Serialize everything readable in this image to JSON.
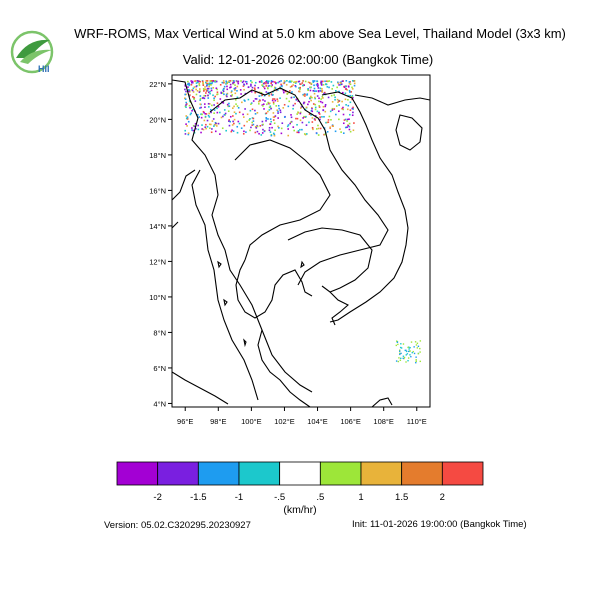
{
  "title_line1": "WRF-ROMS, Max Vertical Wind at 5.0 km above Sea Level, Thailand Model (3x3 km)",
  "title_line2": "Valid: 12-01-2026 02:00:00 (Bangkok Time)",
  "logo_text": "HII",
  "lat_ticks": [
    "22°N",
    "20°N",
    "18°N",
    "16°N",
    "14°N",
    "12°N",
    "10°N",
    "8°N",
    "6°N",
    "4°N"
  ],
  "lon_ticks": [
    "96°E",
    "98°E",
    "100°E",
    "102°E",
    "104°E",
    "106°E",
    "108°E",
    "110°E"
  ],
  "map_extent": {
    "lon_min": 95.2,
    "lon_max": 110.8,
    "lat_min": 3.8,
    "lat_max": 22.5
  },
  "colorbar": {
    "colors": [
      "#a300d4",
      "#7a1fe0",
      "#1e9cf0",
      "#1cc8cc",
      "#ffffff",
      "#9de639",
      "#e8b33a",
      "#e47c2d",
      "#f54a42"
    ],
    "labels": [
      "-2",
      "-1.5",
      "-1",
      "-.5",
      ".5",
      "1",
      "1.5",
      "2"
    ],
    "unit": "(km/hr)"
  },
  "version": "Version: 05.02.C320295.20230927",
  "init": "Init: 11-01-2026 19:00:00 (Bangkok Time)"
}
